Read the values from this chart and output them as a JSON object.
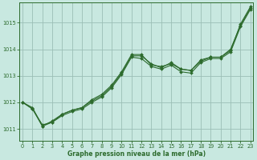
{
  "title": "Graphe pression niveau de la mer (hPa)",
  "background_color": "#c8e8e0",
  "grid_color": "#9bbfb5",
  "line_color": "#2d6b2d",
  "xlim": [
    -0.3,
    23.3
  ],
  "ylim": [
    1010.55,
    1015.75
  ],
  "yticks": [
    1011,
    1012,
    1013,
    1014,
    1015
  ],
  "xticks": [
    0,
    1,
    2,
    3,
    4,
    5,
    6,
    7,
    8,
    9,
    10,
    11,
    12,
    13,
    14,
    15,
    16,
    17,
    18,
    19,
    20,
    21,
    22,
    23
  ],
  "series_top": [
    1012.0,
    1011.8,
    1011.1,
    1011.3,
    1011.55,
    1011.7,
    1011.8,
    1012.05,
    1012.25,
    1012.6,
    1013.1,
    1013.75,
    1013.75,
    1013.45,
    1013.3,
    1013.5,
    1013.25,
    1013.2,
    1013.6,
    1013.7,
    1013.7,
    1014.0,
    1014.9,
    1015.55
  ],
  "series_mid": [
    1012.0,
    1011.75,
    1011.1,
    1011.25,
    1011.5,
    1011.65,
    1011.75,
    1012.0,
    1012.2,
    1012.55,
    1013.05,
    1013.7,
    1013.65,
    1013.35,
    1013.25,
    1013.4,
    1013.15,
    1013.1,
    1013.5,
    1013.65,
    1013.65,
    1013.9,
    1014.85,
    1015.5
  ],
  "series_bot": [
    1012.0,
    1011.75,
    1011.15,
    1011.25,
    1011.55,
    1011.7,
    1011.8,
    1012.1,
    1012.3,
    1012.65,
    1013.15,
    1013.8,
    1013.8,
    1013.4,
    1013.35,
    1013.45,
    1013.25,
    1013.2,
    1013.55,
    1013.7,
    1013.7,
    1013.95,
    1014.95,
    1015.6
  ],
  "title_fontsize": 5.5,
  "tick_fontsize": 4.8
}
